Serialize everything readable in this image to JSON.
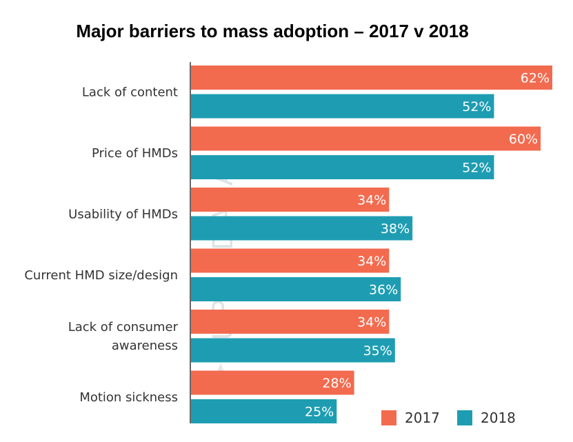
{
  "chart_data": {
    "type": "bar",
    "orientation": "horizontal",
    "title": "Major barriers to mass adoption – 2017 v 2018",
    "categories": [
      [
        "Lack of content"
      ],
      [
        "Price of HMDs"
      ],
      [
        "Usability of HMDs"
      ],
      [
        "Current HMD size/design"
      ],
      [
        "Lack of consumer",
        "awareness"
      ],
      [
        "Motion sickness"
      ]
    ],
    "series": [
      {
        "name": "2017",
        "color": "#f26b4f",
        "values": [
          62,
          60,
          34,
          34,
          34,
          28
        ],
        "labels": [
          "62%",
          "60%",
          "34%",
          "34%",
          "34%",
          "28%"
        ]
      },
      {
        "name": "2018",
        "color": "#1e9db2",
        "values": [
          52,
          52,
          38,
          36,
          35,
          25
        ],
        "labels": [
          "52%",
          "52%",
          "38%",
          "36%",
          "35%",
          "25%"
        ]
      }
    ],
    "xlim": [
      0,
      62
    ],
    "grid": false,
    "legend_position": "bottom-right",
    "watermark": "SUPERDATA"
  }
}
